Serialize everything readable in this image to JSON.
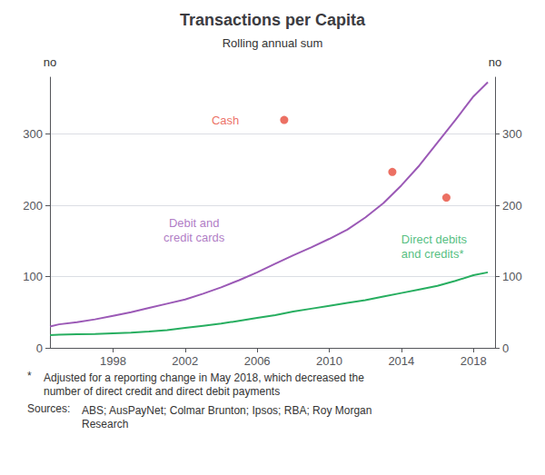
{
  "chart_data": {
    "type": "line",
    "title": "Transactions per Capita",
    "subtitle": "Rolling annual sum",
    "ylabel": "no",
    "y2label": "no",
    "xlim": [
      1994.5,
      2019.2
    ],
    "xticks": [
      1998,
      2002,
      2006,
      2010,
      2014,
      2018
    ],
    "ylim": [
      0,
      380
    ],
    "yticks": [
      0,
      100,
      200,
      300
    ],
    "y2lim": [
      0,
      380
    ],
    "y2ticks": [
      0,
      100,
      200,
      300
    ],
    "grid": true,
    "series": [
      {
        "type": "line",
        "color": "#9B59B6",
        "x": [
          1994.5,
          1995,
          1996,
          1997,
          1998,
          1999,
          2000,
          2001,
          2002,
          2003,
          2004,
          2005,
          2006,
          2007,
          2008,
          2009,
          2010,
          2011,
          2012,
          2013,
          2014,
          2015,
          2016,
          2017,
          2018,
          2018.8
        ],
        "values": [
          30,
          33,
          36,
          40,
          45,
          50,
          56,
          62,
          68,
          76,
          85,
          95,
          106,
          118,
          130,
          141,
          153,
          166,
          183,
          203,
          228,
          256,
          288,
          320,
          353,
          373
        ]
      },
      {
        "type": "line",
        "color": "#27AE60",
        "x": [
          1994.5,
          1995,
          1996,
          1997,
          1998,
          1999,
          2000,
          2001,
          2002,
          2003,
          2004,
          2005,
          2006,
          2007,
          2008,
          2009,
          2010,
          2011,
          2012,
          2013,
          2014,
          2015,
          2016,
          2017,
          2018,
          2018.8
        ],
        "values": [
          18,
          18.5,
          19,
          19.5,
          20.5,
          21.5,
          23,
          25,
          28,
          31,
          34,
          38,
          42,
          46,
          51,
          55,
          59,
          63,
          67,
          72,
          77,
          82,
          87,
          94,
          102,
          106
        ]
      },
      {
        "type": "scatter",
        "color": "#E74C3C",
        "x": [
          2007.5,
          2013.5,
          2016.5
        ],
        "values": [
          320,
          247,
          211
        ]
      }
    ],
    "annotations": [
      {
        "text": "Cash",
        "x": 2005.2,
        "y": 320,
        "color": "#E74C3C"
      },
      {
        "text": "Debit and\ncredit cards",
        "x": 2002.5,
        "y": 165,
        "color": "#9B59B6"
      },
      {
        "text": "Direct debits\nand credits*",
        "x": 2013.8,
        "y": 142,
        "color": "#27AE60"
      }
    ],
    "notes": [
      {
        "label": "*",
        "text": "Adjusted for a reporting change in May 2018, which decreased the\nnumber of direct credit and direct debit payments"
      },
      {
        "label": "Sources:",
        "text": "ABS; AusPayNet; Colmar Brunton; Ipsos; RBA; Roy Morgan\nResearch"
      }
    ]
  }
}
